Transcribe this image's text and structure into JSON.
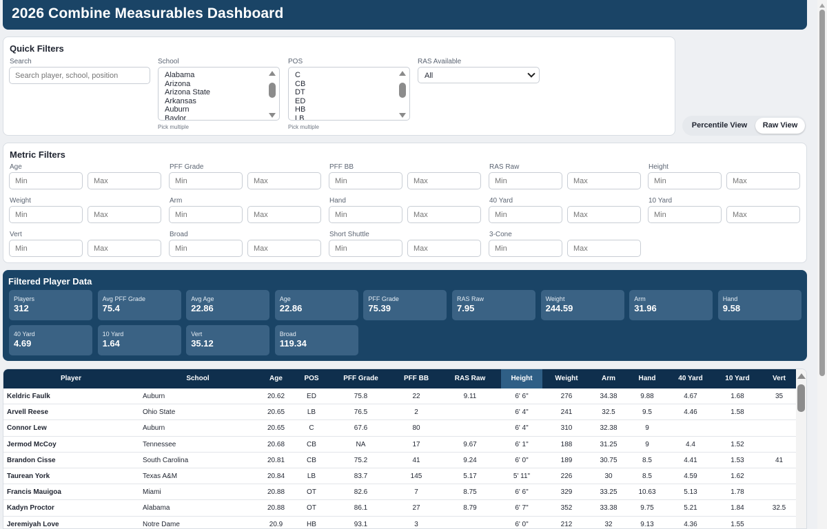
{
  "header": {
    "title": "2026 Combine Measurables Dashboard"
  },
  "quick_filters": {
    "title": "Quick Filters",
    "search": {
      "label": "Search",
      "placeholder": "Search player, school, position"
    },
    "school": {
      "label": "School",
      "options": [
        "Alabama",
        "Arizona",
        "Arizona State",
        "Arkansas",
        "Auburn",
        "Baylor"
      ],
      "hint": "Pick multiple"
    },
    "pos": {
      "label": "POS",
      "options": [
        "C",
        "CB",
        "DT",
        "ED",
        "HB",
        "LB"
      ],
      "hint": "Pick multiple"
    },
    "ras": {
      "label": "RAS Available",
      "value": "All"
    }
  },
  "view_toggle": {
    "percentile": "Percentile View",
    "raw": "Raw View",
    "active": "raw"
  },
  "metric_filters": {
    "title": "Metric Filters",
    "min_placeholder": "Min",
    "max_placeholder": "Max",
    "metrics": [
      "Age",
      "PFF Grade",
      "PFF BB",
      "RAS Raw",
      "Height",
      "Weight",
      "Arm",
      "Hand",
      "40 Yard",
      "10 Yard",
      "Vert",
      "Broad",
      "Short Shuttle",
      "3-Cone"
    ]
  },
  "summary": {
    "title": "Filtered Player Data",
    "stats": [
      {
        "label": "Players",
        "value": "312"
      },
      {
        "label": "Avg PFF Grade",
        "value": "75.4"
      },
      {
        "label": "Avg Age",
        "value": "22.86"
      },
      {
        "label": "Age",
        "value": "22.86"
      },
      {
        "label": "PFF Grade",
        "value": "75.39"
      },
      {
        "label": "RAS Raw",
        "value": "7.95"
      },
      {
        "label": "Weight",
        "value": "244.59"
      },
      {
        "label": "Arm",
        "value": "31.96"
      },
      {
        "label": "Hand",
        "value": "9.58"
      },
      {
        "label": "40 Yard",
        "value": "4.69"
      },
      {
        "label": "10 Yard",
        "value": "1.64"
      },
      {
        "label": "Vert",
        "value": "35.12"
      },
      {
        "label": "Broad",
        "value": "119.34"
      }
    ]
  },
  "table": {
    "highlight_color": "#2f5f86",
    "highlighted_column": "Height",
    "columns": [
      "Player",
      "School",
      "Age",
      "POS",
      "PFF Grade",
      "PFF BB",
      "RAS Raw",
      "Height",
      "Weight",
      "Arm",
      "Hand",
      "40 Yard",
      "10 Yard",
      "Vert"
    ],
    "rows": [
      [
        "Keldric Faulk",
        "Auburn",
        "20.62",
        "ED",
        "75.8",
        "22",
        "9.11",
        "6' 6\"",
        "276",
        "34.38",
        "9.88",
        "4.67",
        "1.68",
        "35"
      ],
      [
        "Arvell Reese",
        "Ohio State",
        "20.65",
        "LB",
        "76.5",
        "2",
        "",
        "6' 4\"",
        "241",
        "32.5",
        "9.5",
        "4.46",
        "1.58",
        ""
      ],
      [
        "Connor Lew",
        "Auburn",
        "20.65",
        "C",
        "67.6",
        "80",
        "",
        "6' 4\"",
        "310",
        "32.38",
        "9",
        "",
        "",
        ""
      ],
      [
        "Jermod McCoy",
        "Tennessee",
        "20.68",
        "CB",
        "NA",
        "17",
        "9.67",
        "6' 1\"",
        "188",
        "31.25",
        "9",
        "4.4",
        "1.52",
        ""
      ],
      [
        "Brandon Cisse",
        "South Carolina",
        "20.81",
        "CB",
        "75.2",
        "41",
        "9.24",
        "6' 0\"",
        "189",
        "30.75",
        "8.5",
        "4.41",
        "1.53",
        "41"
      ],
      [
        "Taurean York",
        "Texas A&M",
        "20.84",
        "LB",
        "83.7",
        "145",
        "5.17",
        "5' 11\"",
        "226",
        "30",
        "8.5",
        "4.59",
        "1.62",
        ""
      ],
      [
        "Francis Mauigoa",
        "Miami",
        "20.88",
        "OT",
        "82.6",
        "7",
        "8.75",
        "6' 6\"",
        "329",
        "33.25",
        "10.63",
        "5.13",
        "1.78",
        ""
      ],
      [
        "Kadyn Proctor",
        "Alabama",
        "20.88",
        "OT",
        "86.1",
        "27",
        "8.79",
        "6' 7\"",
        "352",
        "33.38",
        "9.75",
        "5.21",
        "1.84",
        "32.5"
      ],
      [
        "Jeremiyah Love",
        "Notre Dame",
        "20.9",
        "HB",
        "93.1",
        "3",
        "",
        "6' 0\"",
        "212",
        "32",
        "9.13",
        "4.36",
        "1.55",
        ""
      ]
    ]
  }
}
